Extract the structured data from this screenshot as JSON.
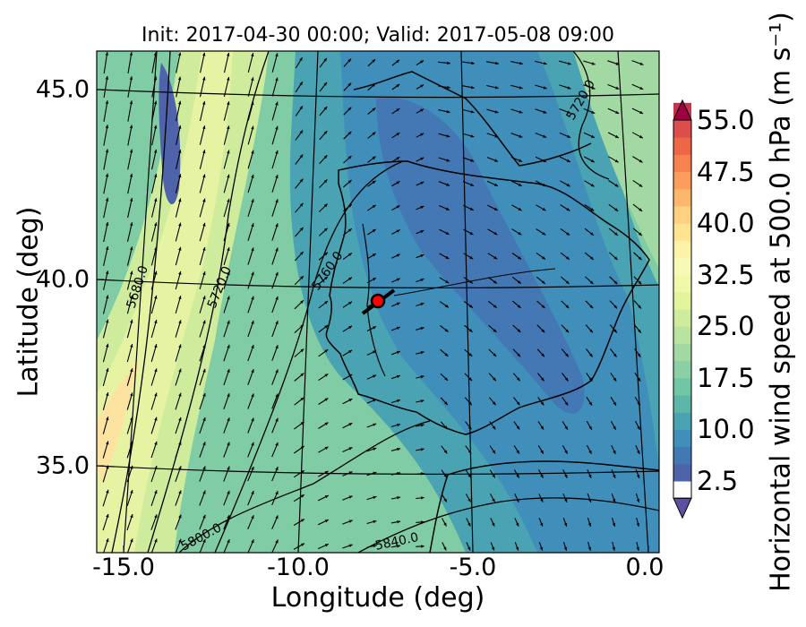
{
  "title": "Init: 2017-04-30 00:00; Valid: 2017-05-08 09:00",
  "xlabel": "Longitude (deg)",
  "ylabel": "Latitude (deg)",
  "colorbar": {
    "label": "Horizontal wind speed at 500.0 hPa (m s⁻¹)",
    "ticks": [
      "2.5",
      "10.0",
      "17.5",
      "25.0",
      "32.5",
      "40.0",
      "47.5",
      "55.0"
    ],
    "min": 2.5,
    "max": 55.0,
    "step": 2.5,
    "colors": [
      "#5e4fa2",
      "#4f63ab",
      "#4478b4",
      "#3f8fba",
      "#4aa3b2",
      "#5db7a9",
      "#71c6a5",
      "#8ad0a4",
      "#a2d9a3",
      "#b9e3a0",
      "#cfec9d",
      "#e2f49c",
      "#f0f8a9",
      "#f7f9b6",
      "#fdf3a8",
      "#fee491",
      "#fed07f",
      "#fdb76d",
      "#fc9d5e",
      "#f7814f",
      "#ed6646",
      "#dc4d4b",
      "#c5334d",
      "#9e0142"
    ]
  },
  "axes": {
    "x_ticks": [
      "-15.0",
      "-10.0",
      "-5.0",
      "0.0"
    ],
    "y_ticks": [
      "45.0",
      "40.0",
      "35.0"
    ],
    "lon_range": [
      -15.8,
      0.3
    ],
    "lat_range": [
      32.8,
      46.0
    ]
  },
  "contours": {
    "labels": [
      "5680.0",
      "5720.0",
      "5760.0",
      "5800.0",
      "5840.0",
      "5720.0"
    ]
  },
  "marker": {
    "lon": -7.6,
    "lat": 39.3,
    "color": "#ff0000"
  }
}
